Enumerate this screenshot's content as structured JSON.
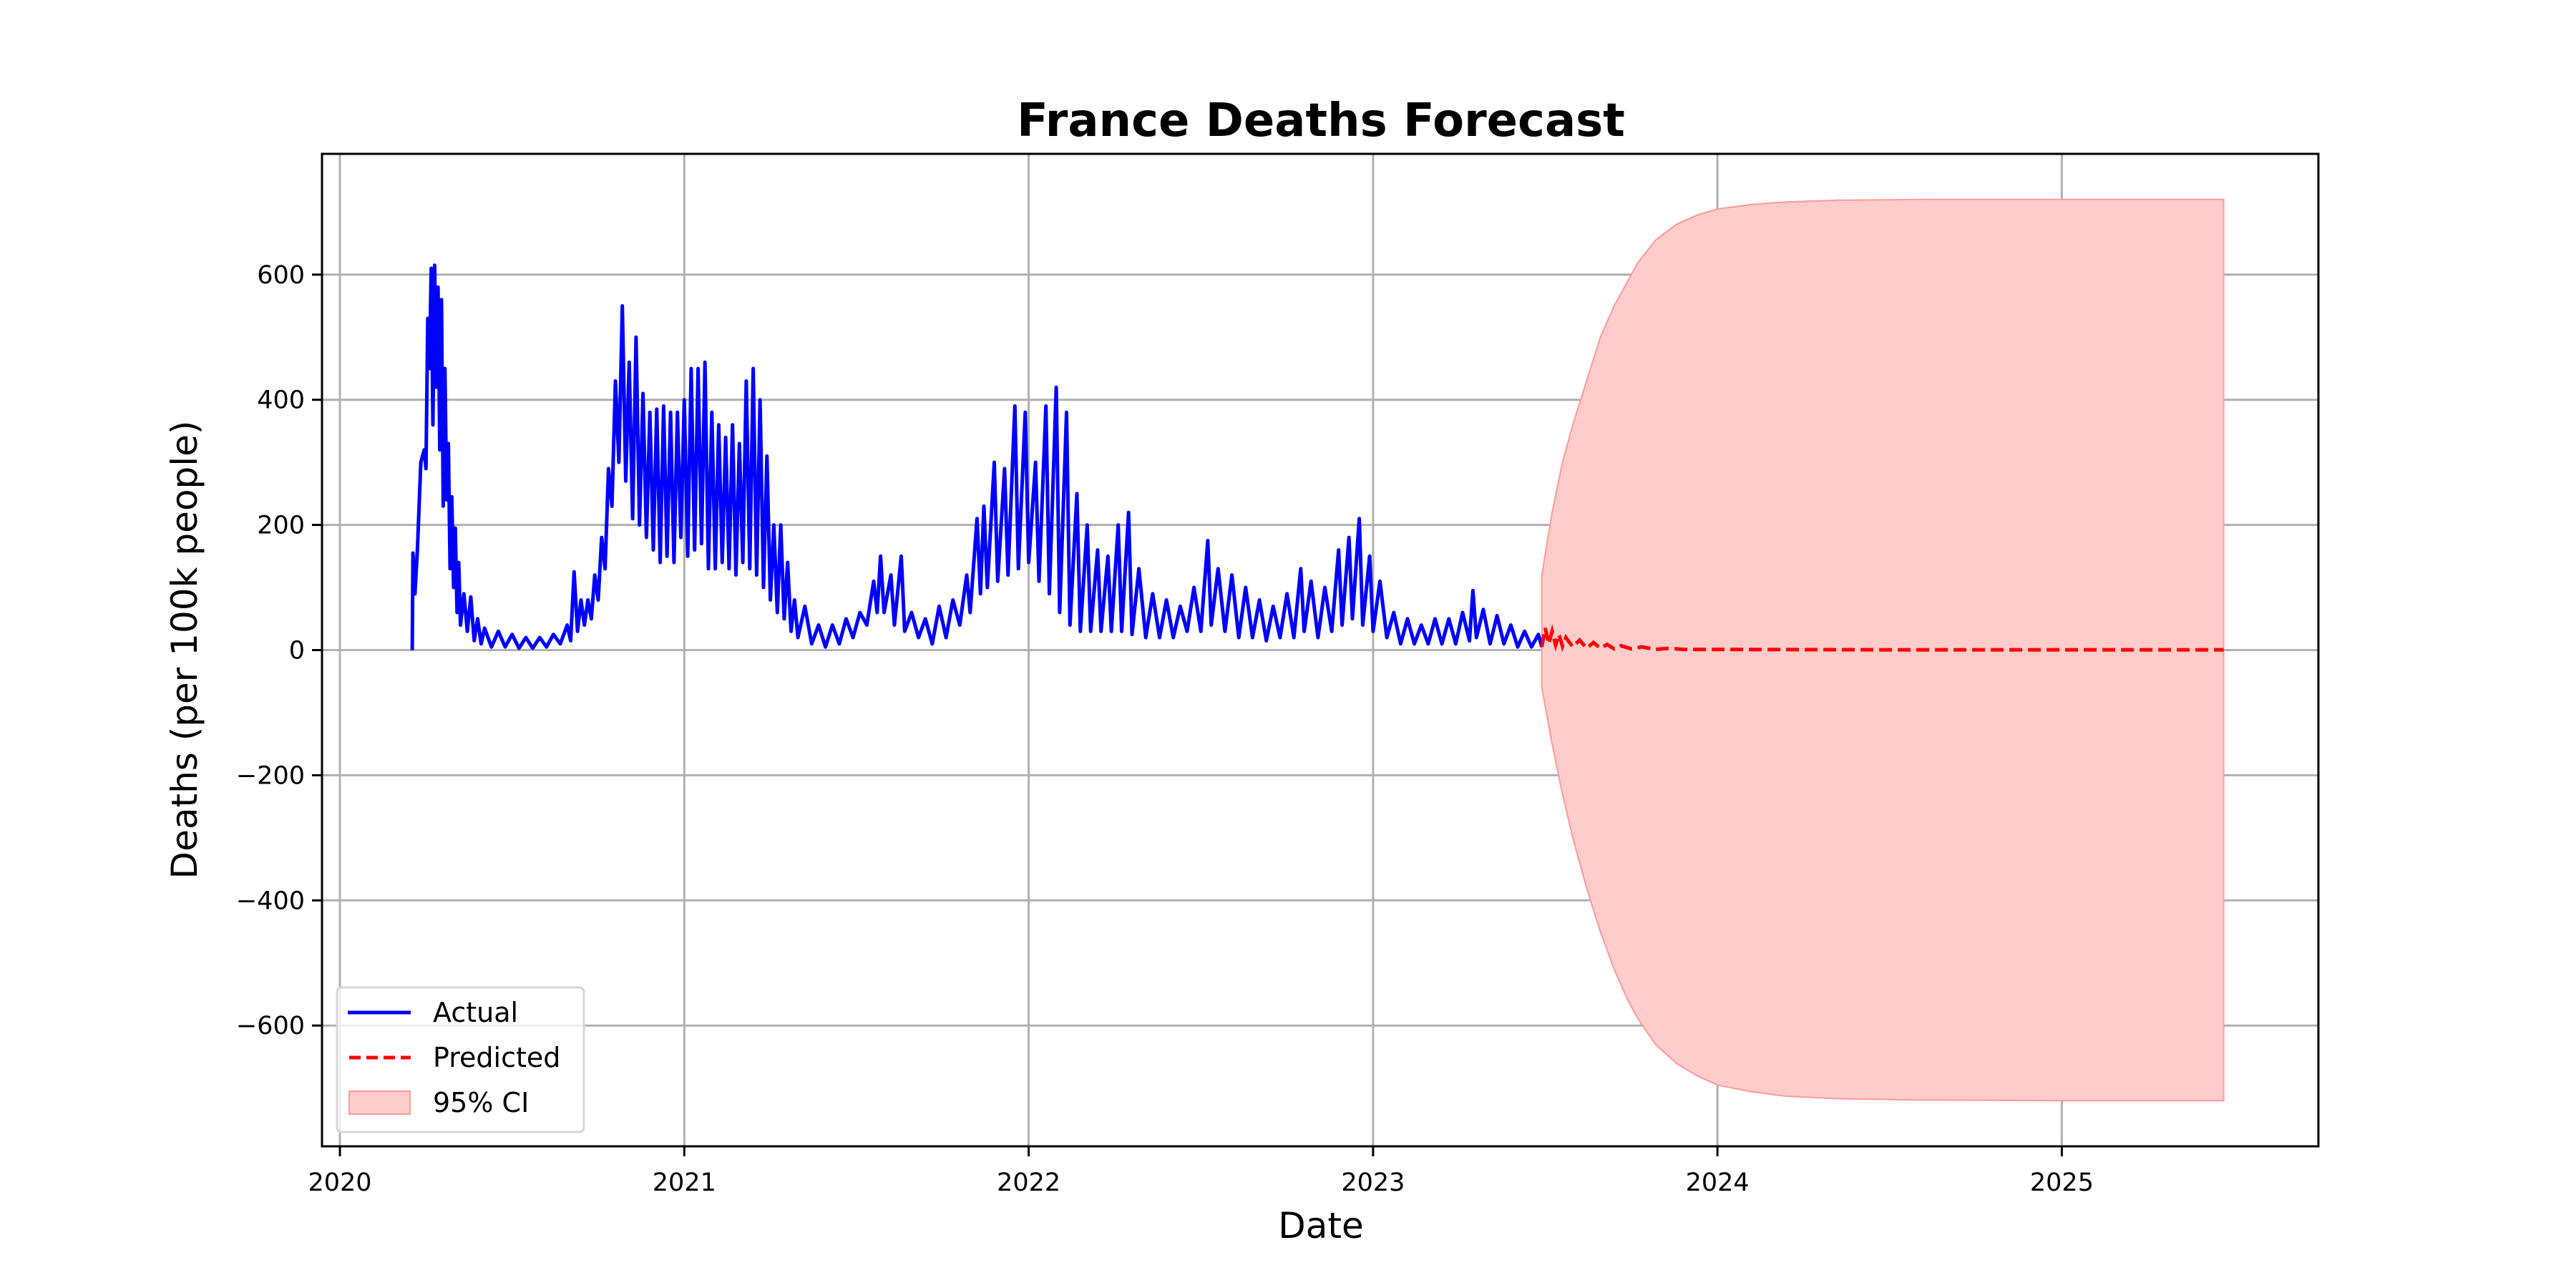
{
  "chart_data": {
    "type": "line",
    "title": "France Deaths Forecast",
    "xlabel": "Date",
    "ylabel": "Deaths (per 100k people)",
    "xlim": [
      2019.948,
      2025.745
    ],
    "ylim": [
      -793,
      793
    ],
    "grid": true,
    "legend_position": "lower-left",
    "x_ticks": [
      2020,
      2021,
      2022,
      2023,
      2024,
      2025
    ],
    "x_tick_labels": [
      "2020",
      "2021",
      "2022",
      "2023",
      "2024",
      "2025"
    ],
    "y_ticks": [
      600,
      400,
      200,
      0,
      -200,
      -400,
      -600
    ],
    "y_tick_labels": [
      "600",
      "400",
      "200",
      "0",
      "−200",
      "−400",
      "−600"
    ],
    "legend": [
      "Actual",
      "Predicted",
      "95% CI"
    ],
    "colors": {
      "actual": "#0000ff",
      "predicted": "#ff0000",
      "ci_fill": "#ffcccc",
      "ci_edge": "#ff9999",
      "grid": "#b0b0b0"
    },
    "series": [
      {
        "name": "Actual",
        "points": [
          [
            2020.21,
            0
          ],
          [
            2020.212,
            155
          ],
          [
            2020.218,
            90
          ],
          [
            2020.225,
            160
          ],
          [
            2020.235,
            300
          ],
          [
            2020.245,
            320
          ],
          [
            2020.25,
            290
          ],
          [
            2020.255,
            530
          ],
          [
            2020.26,
            450
          ],
          [
            2020.265,
            610
          ],
          [
            2020.27,
            360
          ],
          [
            2020.275,
            615
          ],
          [
            2020.28,
            420
          ],
          [
            2020.285,
            580
          ],
          [
            2020.29,
            320
          ],
          [
            2020.295,
            560
          ],
          [
            2020.3,
            230
          ],
          [
            2020.305,
            450
          ],
          [
            2020.31,
            240
          ],
          [
            2020.315,
            330
          ],
          [
            2020.32,
            130
          ],
          [
            2020.325,
            245
          ],
          [
            2020.33,
            100
          ],
          [
            2020.335,
            195
          ],
          [
            2020.34,
            60
          ],
          [
            2020.345,
            140
          ],
          [
            2020.35,
            40
          ],
          [
            2020.36,
            90
          ],
          [
            2020.37,
            30
          ],
          [
            2020.38,
            85
          ],
          [
            2020.39,
            15
          ],
          [
            2020.4,
            50
          ],
          [
            2020.41,
            10
          ],
          [
            2020.42,
            35
          ],
          [
            2020.44,
            5
          ],
          [
            2020.46,
            30
          ],
          [
            2020.48,
            5
          ],
          [
            2020.5,
            25
          ],
          [
            2020.52,
            3
          ],
          [
            2020.54,
            20
          ],
          [
            2020.56,
            3
          ],
          [
            2020.58,
            20
          ],
          [
            2020.6,
            5
          ],
          [
            2020.62,
            25
          ],
          [
            2020.64,
            10
          ],
          [
            2020.66,
            40
          ],
          [
            2020.67,
            15
          ],
          [
            2020.68,
            125
          ],
          [
            2020.69,
            30
          ],
          [
            2020.7,
            80
          ],
          [
            2020.71,
            40
          ],
          [
            2020.72,
            80
          ],
          [
            2020.73,
            50
          ],
          [
            2020.74,
            120
          ],
          [
            2020.75,
            80
          ],
          [
            2020.76,
            180
          ],
          [
            2020.77,
            130
          ],
          [
            2020.78,
            290
          ],
          [
            2020.79,
            230
          ],
          [
            2020.8,
            430
          ],
          [
            2020.81,
            300
          ],
          [
            2020.82,
            550
          ],
          [
            2020.83,
            270
          ],
          [
            2020.84,
            460
          ],
          [
            2020.85,
            210
          ],
          [
            2020.86,
            500
          ],
          [
            2020.87,
            200
          ],
          [
            2020.88,
            410
          ],
          [
            2020.89,
            180
          ],
          [
            2020.9,
            380
          ],
          [
            2020.91,
            160
          ],
          [
            2020.92,
            385
          ],
          [
            2020.93,
            140
          ],
          [
            2020.94,
            390
          ],
          [
            2020.95,
            150
          ],
          [
            2020.96,
            380
          ],
          [
            2020.97,
            140
          ],
          [
            2020.98,
            380
          ],
          [
            2020.99,
            180
          ],
          [
            2021.0,
            400
          ],
          [
            2021.01,
            150
          ],
          [
            2021.02,
            450
          ],
          [
            2021.03,
            160
          ],
          [
            2021.04,
            450
          ],
          [
            2021.05,
            170
          ],
          [
            2021.06,
            460
          ],
          [
            2021.07,
            130
          ],
          [
            2021.08,
            380
          ],
          [
            2021.09,
            130
          ],
          [
            2021.1,
            360
          ],
          [
            2021.11,
            140
          ],
          [
            2021.12,
            340
          ],
          [
            2021.13,
            130
          ],
          [
            2021.14,
            360
          ],
          [
            2021.15,
            120
          ],
          [
            2021.16,
            330
          ],
          [
            2021.17,
            140
          ],
          [
            2021.18,
            430
          ],
          [
            2021.19,
            130
          ],
          [
            2021.2,
            450
          ],
          [
            2021.21,
            120
          ],
          [
            2021.22,
            400
          ],
          [
            2021.23,
            100
          ],
          [
            2021.24,
            310
          ],
          [
            2021.25,
            80
          ],
          [
            2021.26,
            200
          ],
          [
            2021.27,
            60
          ],
          [
            2021.28,
            200
          ],
          [
            2021.29,
            50
          ],
          [
            2021.3,
            140
          ],
          [
            2021.31,
            30
          ],
          [
            2021.32,
            80
          ],
          [
            2021.33,
            20
          ],
          [
            2021.35,
            70
          ],
          [
            2021.37,
            10
          ],
          [
            2021.39,
            40
          ],
          [
            2021.41,
            5
          ],
          [
            2021.43,
            40
          ],
          [
            2021.45,
            10
          ],
          [
            2021.47,
            50
          ],
          [
            2021.49,
            20
          ],
          [
            2021.51,
            60
          ],
          [
            2021.53,
            40
          ],
          [
            2021.55,
            110
          ],
          [
            2021.56,
            60
          ],
          [
            2021.57,
            150
          ],
          [
            2021.58,
            60
          ],
          [
            2021.6,
            120
          ],
          [
            2021.61,
            40
          ],
          [
            2021.63,
            150
          ],
          [
            2021.64,
            30
          ],
          [
            2021.66,
            60
          ],
          [
            2021.68,
            20
          ],
          [
            2021.7,
            50
          ],
          [
            2021.72,
            10
          ],
          [
            2021.74,
            70
          ],
          [
            2021.76,
            20
          ],
          [
            2021.78,
            80
          ],
          [
            2021.8,
            40
          ],
          [
            2021.82,
            120
          ],
          [
            2021.83,
            60
          ],
          [
            2021.85,
            210
          ],
          [
            2021.86,
            90
          ],
          [
            2021.87,
            230
          ],
          [
            2021.88,
            100
          ],
          [
            2021.9,
            300
          ],
          [
            2021.91,
            110
          ],
          [
            2021.93,
            290
          ],
          [
            2021.94,
            120
          ],
          [
            2021.96,
            390
          ],
          [
            2021.97,
            130
          ],
          [
            2021.99,
            380
          ],
          [
            2022.0,
            140
          ],
          [
            2022.02,
            300
          ],
          [
            2022.03,
            110
          ],
          [
            2022.05,
            390
          ],
          [
            2022.06,
            90
          ],
          [
            2022.08,
            420
          ],
          [
            2022.09,
            60
          ],
          [
            2022.11,
            380
          ],
          [
            2022.12,
            40
          ],
          [
            2022.14,
            250
          ],
          [
            2022.15,
            30
          ],
          [
            2022.17,
            200
          ],
          [
            2022.18,
            30
          ],
          [
            2022.2,
            160
          ],
          [
            2022.21,
            30
          ],
          [
            2022.23,
            150
          ],
          [
            2022.24,
            30
          ],
          [
            2022.26,
            200
          ],
          [
            2022.27,
            30
          ],
          [
            2022.29,
            220
          ],
          [
            2022.3,
            25
          ],
          [
            2022.32,
            130
          ],
          [
            2022.34,
            20
          ],
          [
            2022.36,
            90
          ],
          [
            2022.38,
            20
          ],
          [
            2022.4,
            80
          ],
          [
            2022.42,
            20
          ],
          [
            2022.44,
            70
          ],
          [
            2022.46,
            30
          ],
          [
            2022.48,
            100
          ],
          [
            2022.5,
            30
          ],
          [
            2022.52,
            175
          ],
          [
            2022.53,
            40
          ],
          [
            2022.55,
            130
          ],
          [
            2022.57,
            30
          ],
          [
            2022.59,
            120
          ],
          [
            2022.61,
            20
          ],
          [
            2022.63,
            100
          ],
          [
            2022.65,
            20
          ],
          [
            2022.67,
            80
          ],
          [
            2022.69,
            15
          ],
          [
            2022.71,
            70
          ],
          [
            2022.73,
            20
          ],
          [
            2022.75,
            90
          ],
          [
            2022.77,
            20
          ],
          [
            2022.79,
            130
          ],
          [
            2022.8,
            30
          ],
          [
            2022.82,
            110
          ],
          [
            2022.84,
            20
          ],
          [
            2022.86,
            100
          ],
          [
            2022.88,
            30
          ],
          [
            2022.9,
            160
          ],
          [
            2022.91,
            40
          ],
          [
            2022.93,
            180
          ],
          [
            2022.94,
            50
          ],
          [
            2022.96,
            210
          ],
          [
            2022.97,
            40
          ],
          [
            2022.99,
            150
          ],
          [
            2023.0,
            30
          ],
          [
            2023.02,
            110
          ],
          [
            2023.04,
            20
          ],
          [
            2023.06,
            60
          ],
          [
            2023.08,
            10
          ],
          [
            2023.1,
            50
          ],
          [
            2023.12,
            10
          ],
          [
            2023.14,
            40
          ],
          [
            2023.16,
            10
          ],
          [
            2023.18,
            50
          ],
          [
            2023.2,
            10
          ],
          [
            2023.22,
            50
          ],
          [
            2023.24,
            10
          ],
          [
            2023.26,
            60
          ],
          [
            2023.28,
            15
          ],
          [
            2023.29,
            95
          ],
          [
            2023.3,
            20
          ],
          [
            2023.32,
            65
          ],
          [
            2023.34,
            10
          ],
          [
            2023.36,
            55
          ],
          [
            2023.38,
            10
          ],
          [
            2023.4,
            40
          ],
          [
            2023.42,
            5
          ],
          [
            2023.44,
            30
          ],
          [
            2023.46,
            5
          ],
          [
            2023.48,
            25
          ],
          [
            2023.49,
            5
          ]
        ]
      },
      {
        "name": "Predicted",
        "points": [
          [
            2023.49,
            5
          ],
          [
            2023.5,
            35
          ],
          [
            2023.51,
            10
          ],
          [
            2023.52,
            30
          ],
          [
            2023.53,
            8
          ],
          [
            2023.54,
            25
          ],
          [
            2023.55,
            6
          ],
          [
            2023.56,
            20
          ],
          [
            2023.58,
            5
          ],
          [
            2023.6,
            16
          ],
          [
            2023.62,
            3
          ],
          [
            2023.64,
            12
          ],
          [
            2023.66,
            3
          ],
          [
            2023.68,
            9
          ],
          [
            2023.7,
            2
          ],
          [
            2023.72,
            7
          ],
          [
            2023.75,
            2
          ],
          [
            2023.78,
            5
          ],
          [
            2023.82,
            1
          ],
          [
            2023.86,
            3
          ],
          [
            2023.9,
            1
          ],
          [
            2024.0,
            1
          ],
          [
            2024.5,
            0.5
          ],
          [
            2025.0,
            0.5
          ],
          [
            2025.47,
            0.5
          ]
        ]
      }
    ],
    "ci_95": [
      [
        2023.49,
        -60,
        120
      ],
      [
        2023.52,
        -150,
        220
      ],
      [
        2023.55,
        -230,
        300
      ],
      [
        2023.58,
        -300,
        360
      ],
      [
        2023.62,
        -380,
        430
      ],
      [
        2023.66,
        -450,
        500
      ],
      [
        2023.7,
        -510,
        550
      ],
      [
        2023.74,
        -560,
        590
      ],
      [
        2023.77,
        -590,
        620
      ],
      [
        2023.82,
        -630,
        655
      ],
      [
        2023.88,
        -660,
        680
      ],
      [
        2023.94,
        -680,
        695
      ],
      [
        2024.0,
        -695,
        705
      ],
      [
        2024.1,
        -706,
        712
      ],
      [
        2024.2,
        -713,
        716
      ],
      [
        2024.35,
        -717,
        719
      ],
      [
        2024.6,
        -719,
        720
      ],
      [
        2025.0,
        -720,
        720
      ],
      [
        2025.47,
        -720,
        720
      ]
    ]
  }
}
